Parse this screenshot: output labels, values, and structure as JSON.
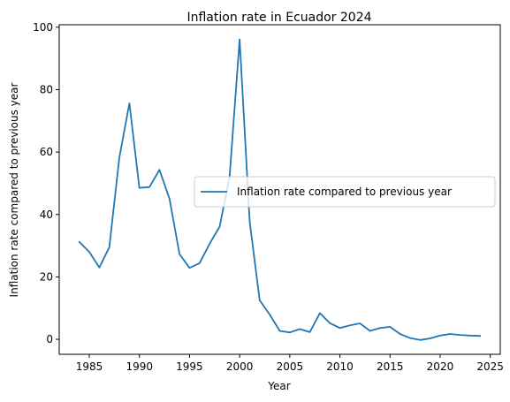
{
  "chart_data": {
    "type": "line",
    "title": "Inflation rate in Ecuador 2024",
    "xlabel": "Year",
    "ylabel": "Inflation rate compared to previous year",
    "xlim": [
      1982,
      2026
    ],
    "ylim": [
      -4.8,
      100.8
    ],
    "xticks": [
      1985,
      1990,
      1995,
      2000,
      2005,
      2010,
      2015,
      2020,
      2025
    ],
    "yticks": [
      0,
      20,
      40,
      60,
      80,
      100
    ],
    "grid": false,
    "legend": {
      "placement": "center-right"
    },
    "colors": {
      "series": "#1f77b4"
    },
    "series": [
      {
        "name": "Inflation rate compared to previous year",
        "x": [
          1984,
          1985,
          1986,
          1987,
          1988,
          1989,
          1990,
          1991,
          1992,
          1993,
          1994,
          1995,
          1996,
          1997,
          1998,
          1999,
          2000,
          2001,
          2002,
          2003,
          2004,
          2005,
          2006,
          2007,
          2008,
          2009,
          2010,
          2011,
          2012,
          2013,
          2014,
          2015,
          2016,
          2017,
          2018,
          2019,
          2020,
          2021,
          2022,
          2023,
          2024
        ],
        "y": [
          31.2,
          28.0,
          23.0,
          29.5,
          58.2,
          75.6,
          48.5,
          48.8,
          54.3,
          45.0,
          27.3,
          22.9,
          24.4,
          30.6,
          36.1,
          52.2,
          96.1,
          37.7,
          12.5,
          7.9,
          2.7,
          2.2,
          3.3,
          2.3,
          8.4,
          5.2,
          3.6,
          4.5,
          5.1,
          2.7,
          3.6,
          4.0,
          1.7,
          0.4,
          -0.2,
          0.3,
          1.2,
          1.7,
          1.4,
          1.2,
          1.1
        ]
      }
    ]
  }
}
